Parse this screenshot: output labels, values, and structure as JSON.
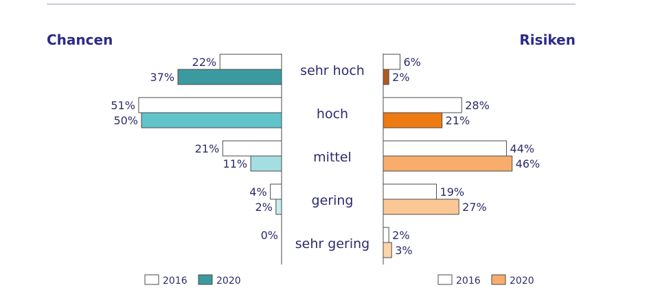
{
  "chart_data": {
    "type": "bar",
    "orientation": "horizontal-butterfly",
    "categories": [
      "sehr hoch",
      "hoch",
      "mittel",
      "gering",
      "sehr gering"
    ],
    "left_panel": {
      "title": "Chancen",
      "series": [
        {
          "name": "2016",
          "values": [
            22,
            51,
            21,
            4,
            0
          ],
          "colors": [
            "#ffffff",
            "#ffffff",
            "#ffffff",
            "#ffffff",
            "#ffffff"
          ]
        },
        {
          "name": "2020",
          "values": [
            37,
            50,
            11,
            2,
            0
          ],
          "colors": [
            "#3a9aa0",
            "#62c4cb",
            "#a4dee2",
            "#c9ecef",
            "#e3f5f6"
          ]
        }
      ],
      "legend": [
        {
          "label": "2016",
          "color": "#ffffff"
        },
        {
          "label": "2020",
          "color": "#3a9aa0"
        }
      ]
    },
    "right_panel": {
      "title": "Risiken",
      "series": [
        {
          "name": "2016",
          "values": [
            6,
            28,
            44,
            19,
            2
          ],
          "colors": [
            "#ffffff",
            "#ffffff",
            "#ffffff",
            "#ffffff",
            "#ffffff"
          ]
        },
        {
          "name": "2020",
          "values": [
            2,
            21,
            46,
            27,
            3
          ],
          "colors": [
            "#b3591f",
            "#ee7a12",
            "#f8ad6c",
            "#fbc895",
            "#fcd5ac"
          ]
        }
      ],
      "legend": [
        {
          "label": "2016",
          "color": "#ffffff"
        },
        {
          "label": "2020",
          "color": "#f8ad6c"
        }
      ]
    },
    "value_suffix": "%",
    "xlim": [
      0,
      60
    ],
    "grid": false,
    "legend_position": "bottom",
    "colors": {
      "text": "#2b2b6b",
      "title": "#2b2b8a",
      "outline": "#4a4a4a",
      "top_rule": "#9a9ab5"
    }
  }
}
